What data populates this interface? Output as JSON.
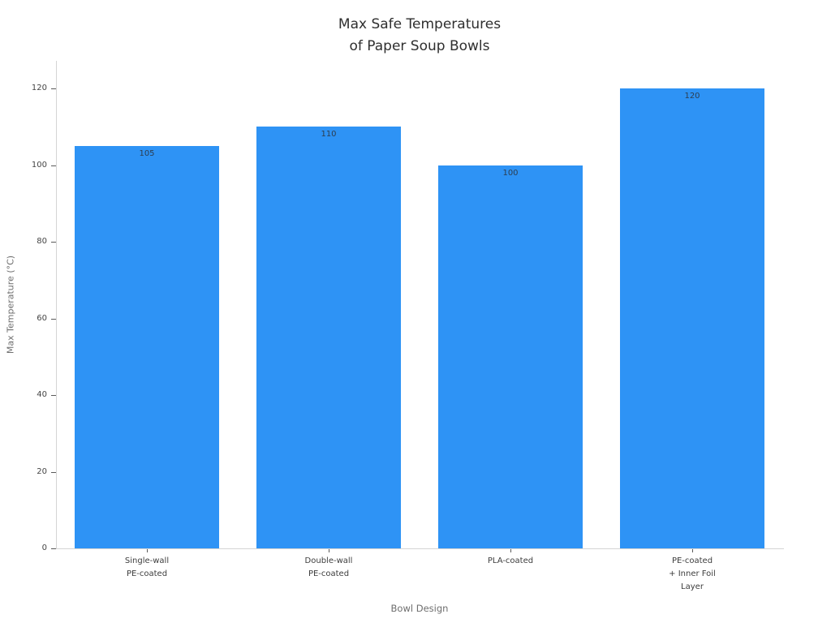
{
  "chart_data": {
    "type": "bar",
    "title": "Max Safe Temperatures\nof Paper Soup Bowls",
    "xlabel": "Bowl Design",
    "ylabel": "Max Temperature (°C)",
    "categories": [
      "Single-wall\nPE-coated",
      "Double-wall\nPE-coated",
      "PLA-coated",
      "PE-coated\n+ Inner Foil\nLayer"
    ],
    "values": [
      105,
      110,
      100,
      120
    ],
    "bar_labels": [
      "105",
      "110",
      "100",
      "120"
    ],
    "yticks": [
      0,
      20,
      40,
      60,
      80,
      100,
      120
    ],
    "ylim": [
      0,
      127
    ],
    "grid": false,
    "legend": null
  },
  "colors": {
    "bar": "#2e93f5",
    "title_text": "#2f2f2f",
    "tick_label_text": "#454545",
    "axis_title_text": "#6e6e6e",
    "spine": "#d4d4d4",
    "value_label_text": "#2d3e50"
  }
}
